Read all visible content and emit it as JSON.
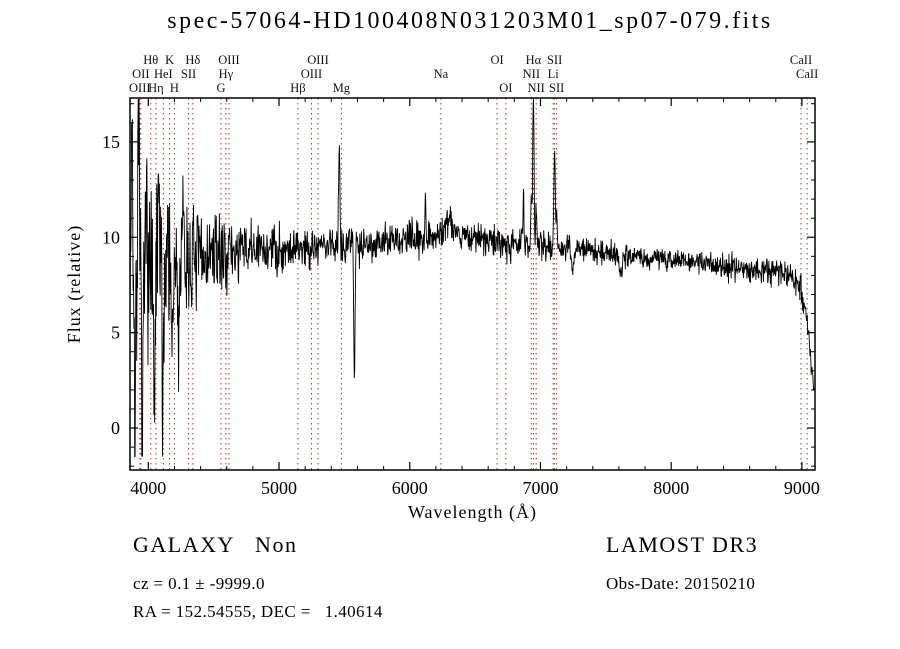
{
  "title": "spec-57064-HD100408N031203M01_sp07-079.fits",
  "annotations": {
    "class_label": "GALAXY   Non",
    "survey": "LAMOST DR3",
    "cz": "cz = 0.1 ± -9999.0",
    "obs_date": "Obs-Date: 20150210",
    "ra_dec": "RA = 152.54555, DEC =   1.40614"
  },
  "chart_data": {
    "type": "line",
    "title": "spec-57064-HD100408N031203M01_sp07-079.fits",
    "xlabel": "Wavelength (Å)",
    "ylabel": "Flux (relative)",
    "xlim": [
      3860,
      9100
    ],
    "ylim": [
      -2.2,
      17.3
    ],
    "xticks": [
      4000,
      5000,
      6000,
      7000,
      8000,
      9000
    ],
    "yticks": [
      0,
      5,
      10,
      15
    ],
    "x_minor_step": 200,
    "y_minor_step": 1,
    "line_color": "#000000",
    "marker_color": "#aa3a2f",
    "axis_color": "#000000",
    "label_color": "#111111",
    "line_markers": [
      {
        "label": "OIII",
        "wavelength": 3935,
        "row": 3
      },
      {
        "label": "OII",
        "wavelength": 3943,
        "row": 2
      },
      {
        "label": "Hθ",
        "wavelength": 4019,
        "row": 1
      },
      {
        "label": "Hη",
        "wavelength": 4058,
        "row": 3
      },
      {
        "label": "HeI",
        "wavelength": 4115,
        "row": 2
      },
      {
        "label": "K",
        "wavelength": 4163,
        "row": 1
      },
      {
        "label": "H",
        "wavelength": 4200,
        "row": 3
      },
      {
        "label": "SII",
        "wavelength": 4308,
        "row": 2
      },
      {
        "label": "Hδ",
        "wavelength": 4341,
        "row": 1
      },
      {
        "label": "G",
        "wavelength": 4556,
        "row": 3
      },
      {
        "label": "Hγ",
        "wavelength": 4594,
        "row": 2
      },
      {
        "label": "OIII",
        "wavelength": 4617,
        "row": 1
      },
      {
        "label": "Hβ",
        "wavelength": 5145,
        "row": 3
      },
      {
        "label": "OIII",
        "wavelength": 5248,
        "row": 2
      },
      {
        "label": "OIII",
        "wavelength": 5298,
        "row": 1
      },
      {
        "label": "Mg",
        "wavelength": 5477,
        "row": 3
      },
      {
        "label": "Na",
        "wavelength": 6238,
        "row": 2
      },
      {
        "label": "OI",
        "wavelength": 6668,
        "row": 1
      },
      {
        "label": "OI",
        "wavelength": 6735,
        "row": 3
      },
      {
        "label": "NII",
        "wavelength": 6930,
        "row": 2
      },
      {
        "label": "Hα",
        "wavelength": 6946,
        "row": 1
      },
      {
        "label": "NII",
        "wavelength": 6967,
        "row": 3
      },
      {
        "label": "Li",
        "wavelength": 7097,
        "row": 2
      },
      {
        "label": "SII",
        "wavelength": 7108,
        "row": 1
      },
      {
        "label": "SII",
        "wavelength": 7124,
        "row": 3
      },
      {
        "label": "CaII",
        "wavelength": 8993,
        "row": 1
      },
      {
        "label": "CaII",
        "wavelength": 9040,
        "row": 2
      }
    ],
    "spectrum": {
      "seed": 7,
      "step": 3,
      "continuum": [
        [
          3860,
          7.8
        ],
        [
          3950,
          8.0
        ],
        [
          4100,
          8.1
        ],
        [
          4300,
          8.7
        ],
        [
          4600,
          9.2
        ],
        [
          5000,
          9.4
        ],
        [
          5400,
          9.6
        ],
        [
          5900,
          9.8
        ],
        [
          6150,
          10.1
        ],
        [
          6350,
          10.2
        ],
        [
          6600,
          9.8
        ],
        [
          7000,
          9.6
        ],
        [
          7300,
          9.4
        ],
        [
          7700,
          9.0
        ],
        [
          8100,
          8.8
        ],
        [
          8500,
          8.4
        ],
        [
          8850,
          8.2
        ],
        [
          8980,
          7.6
        ],
        [
          9040,
          5.5
        ],
        [
          9075,
          3.2
        ],
        [
          9100,
          1.7
        ]
      ],
      "noise": [
        [
          3860,
          5.3
        ],
        [
          3950,
          5.0
        ],
        [
          4050,
          4.6
        ],
        [
          4150,
          4.2
        ],
        [
          4300,
          3.0
        ],
        [
          4500,
          2.0
        ],
        [
          4750,
          1.5
        ],
        [
          5000,
          1.25
        ],
        [
          5400,
          1.05
        ],
        [
          5900,
          0.9
        ],
        [
          6400,
          0.85
        ],
        [
          6900,
          0.8
        ],
        [
          7300,
          0.65
        ],
        [
          7800,
          0.55
        ],
        [
          8300,
          0.6
        ],
        [
          8700,
          0.7
        ],
        [
          9000,
          0.75
        ],
        [
          9100,
          0.8
        ]
      ],
      "features": [
        [
          3875,
          8,
          9.5
        ],
        [
          3895,
          7,
          -8.0
        ],
        [
          3925,
          7,
          7.0
        ],
        [
          3955,
          8,
          -9.5
        ],
        [
          3990,
          6,
          6.0
        ],
        [
          4045,
          8,
          -8.5
        ],
        [
          4080,
          6,
          5.0
        ],
        [
          4110,
          7,
          -7.5
        ],
        [
          4150,
          6,
          4.0
        ],
        [
          4185,
          7,
          -6.0
        ],
        [
          4230,
          8,
          -4.0
        ],
        [
          4270,
          6,
          3.0
        ],
        [
          5461,
          7,
          5.5
        ],
        [
          5577,
          7,
          -6.5
        ],
        [
          6120,
          5,
          2.0
        ],
        [
          6300,
          40,
          0.8
        ],
        [
          6870,
          5,
          2.6
        ],
        [
          6930,
          6,
          2.5
        ],
        [
          6946,
          7,
          8.6
        ],
        [
          6967,
          5,
          2.0
        ],
        [
          7108,
          7,
          5.2
        ],
        [
          7124,
          5,
          2.5
        ],
        [
          7245,
          12,
          -1.4
        ],
        [
          7615,
          12,
          -1.0
        ]
      ]
    }
  }
}
